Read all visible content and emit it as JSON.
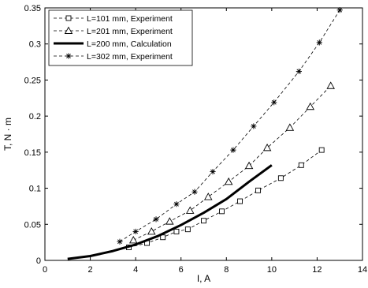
{
  "chart_data": {
    "type": "line",
    "title": "",
    "xlabel": "I, A",
    "ylabel": "T, N · m",
    "xlim": [
      0,
      14
    ],
    "ylim": [
      0,
      0.35
    ],
    "xticks": [
      0,
      2,
      4,
      6,
      8,
      10,
      12,
      14
    ],
    "xtick_labels": [
      "0",
      "2",
      "4",
      "6",
      "8",
      "10",
      "12",
      "14"
    ],
    "yticks": [
      0,
      0.05,
      0.1,
      0.15,
      0.2,
      0.25,
      0.3,
      0.35
    ],
    "ytick_labels": [
      "0",
      "0.05",
      "0.1",
      "0.15",
      "0.2",
      "0.25",
      "0.3",
      "0.35"
    ],
    "grid": false,
    "legend_position": "top-left",
    "series": [
      {
        "name": "L=101 mm, Experiment",
        "marker": "square",
        "line_style": "dashed",
        "color": "#000000",
        "x": [
          3.7,
          4.5,
          5.2,
          5.8,
          6.3,
          7.0,
          7.8,
          8.6,
          9.4,
          10.4,
          11.3,
          12.2
        ],
        "y": [
          0.018,
          0.024,
          0.032,
          0.04,
          0.043,
          0.055,
          0.068,
          0.082,
          0.097,
          0.114,
          0.132,
          0.153
        ]
      },
      {
        "name": "L=201 mm, Experiment",
        "marker": "triangle",
        "line_style": "dashed",
        "color": "#000000",
        "x": [
          3.9,
          4.7,
          5.5,
          6.4,
          7.2,
          8.1,
          9.0,
          9.8,
          10.8,
          11.7,
          12.6
        ],
        "y": [
          0.028,
          0.04,
          0.054,
          0.069,
          0.088,
          0.109,
          0.131,
          0.156,
          0.184,
          0.213,
          0.242
        ]
      },
      {
        "name": "L=200 mm, Calculation",
        "marker": "none",
        "line_style": "solid-thick",
        "color": "#000000",
        "x": [
          1.0,
          2.0,
          3.0,
          4.0,
          5.0,
          6.0,
          7.0,
          8.0,
          9.0,
          10.0
        ],
        "y": [
          0.002,
          0.006,
          0.013,
          0.022,
          0.034,
          0.049,
          0.066,
          0.085,
          0.109,
          0.132
        ]
      },
      {
        "name": "L=302 mm, Experiment",
        "marker": "star",
        "line_style": "dashed",
        "color": "#000000",
        "x": [
          3.3,
          4.0,
          4.9,
          5.8,
          6.6,
          7.4,
          8.3,
          9.2,
          10.1,
          11.2,
          12.1,
          13.0
        ],
        "y": [
          0.026,
          0.04,
          0.057,
          0.078,
          0.095,
          0.123,
          0.153,
          0.186,
          0.219,
          0.262,
          0.302,
          0.347
        ]
      }
    ]
  }
}
